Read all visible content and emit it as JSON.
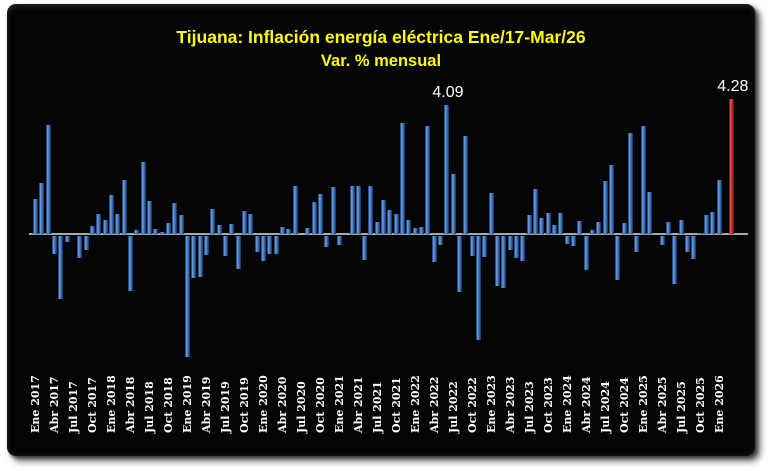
{
  "chart_data": {
    "type": "bar",
    "title": "Tijuana: Inflación energía eléctrica Ene/17-Mar/26",
    "subtitle": "Var. % mensual",
    "start_month": "Ene 2017",
    "end_month": "Mar 2026",
    "x_tick_labels": [
      "Ene 2017",
      "Abr 2017",
      "Jul 2017",
      "Oct 2017",
      "Ene 2018",
      "Abr 2018",
      "Jul 2018",
      "Oct 2018",
      "Ene 2019",
      "Abr 2019",
      "Jul 2019",
      "Oct 2019",
      "Ene 2020",
      "Abr 2020",
      "Jul 2020",
      "Oct 2020",
      "Ene 2021",
      "Abr 2021",
      "Jul 2021",
      "Oct 2021",
      "Ene 2022",
      "Abr 2022",
      "Jul 2022",
      "Oct 2022",
      "Ene 2023",
      "Abr 2023",
      "Jul 2023",
      "Oct 2023",
      "Ene 2024",
      "Abr 2024",
      "Jul 2024",
      "Oct 2024",
      "Ene 2025",
      "Abr 2025",
      "Jul 2025",
      "Oct 2025",
      "Ene 2026"
    ],
    "tick_every_months": 3,
    "series": [
      {
        "name": "Var. % mensual",
        "values": [
          1.1,
          1.63,
          3.45,
          -0.56,
          -2.0,
          -0.18,
          0.0,
          -0.7,
          -0.45,
          0.26,
          0.64,
          0.43,
          1.24,
          0.64,
          1.73,
          -1.75,
          0.13,
          2.27,
          1.06,
          0.15,
          0.05,
          0.36,
          1.0,
          0.6,
          -3.84,
          -1.34,
          -1.29,
          -0.61,
          0.8,
          0.27,
          -0.62,
          0.31,
          -1.06,
          0.73,
          0.65,
          -0.52,
          -0.78,
          -0.56,
          -0.58,
          0.21,
          0.15,
          1.51,
          0.0,
          0.18,
          1.03,
          1.27,
          -0.36,
          1.48,
          -0.28,
          0.0,
          1.52,
          1.52,
          -0.75,
          1.52,
          0.39,
          1.08,
          0.76,
          0.64,
          3.51,
          0.44,
          0.18,
          0.23,
          3.44,
          -0.82,
          -0.29,
          4.09,
          1.92,
          -1.78,
          3.1,
          -0.62,
          -3.31,
          -0.68,
          1.31,
          -1.59,
          -1.64,
          -0.45,
          -0.7,
          -0.78,
          0.6,
          1.43,
          0.5,
          0.67,
          0.29,
          0.68,
          -0.25,
          -0.33,
          0.41,
          -1.09,
          0.13,
          0.39,
          1.68,
          2.18,
          -1.39,
          0.34,
          3.22,
          -0.52,
          3.44,
          1.34,
          0.0,
          -0.3,
          0.37,
          -1.52,
          0.45,
          -0.51,
          -0.72,
          0.02,
          0.6,
          0.7,
          1.73,
          0.0,
          4.28
        ]
      }
    ],
    "annotations": [
      {
        "label": "4.09",
        "month_index": 65
      },
      {
        "label": "4.28",
        "month_index": 110
      }
    ],
    "ylim": [
      -4.3,
      4.6
    ],
    "grid": false,
    "legend": false,
    "colors": {
      "bar": "#3a74b8",
      "last_bar_highlight": "#c03028",
      "title": "#ffff00",
      "axis_line": "#a9a9a9",
      "tick_label": "#ffffff",
      "value_label": "#ffffff",
      "panel_background": "#040404",
      "page_background": "#ffffff"
    }
  }
}
